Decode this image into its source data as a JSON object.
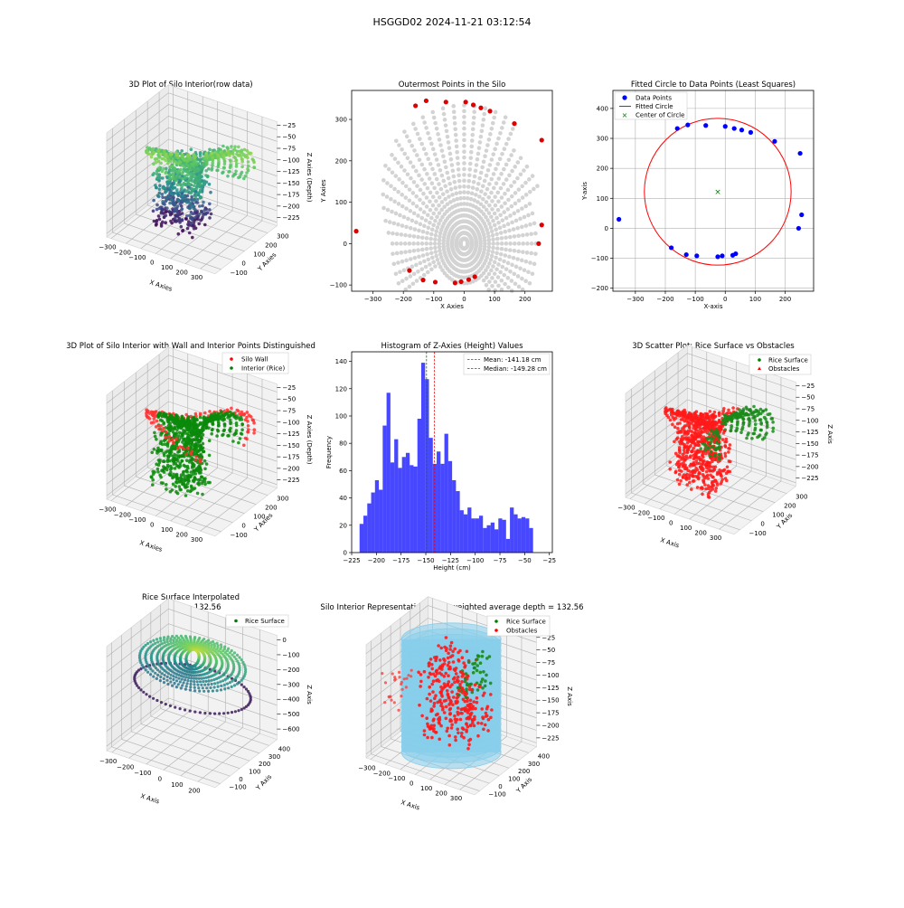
{
  "figure": {
    "suptitle": "HSGGD02 2024-11-21 03:12:54"
  },
  "colors": {
    "wall": "#ff0000",
    "rice": "#008000",
    "hist": "#0000ff",
    "cylinder": "#87ceeb",
    "gray": "#d3d3d3",
    "blue_pts": "#0000ff"
  },
  "chart_data": [
    {
      "id": "p1",
      "type": "scatter",
      "title": "3D Plot of Silo Interior(row data)",
      "xlabel": "X Axies",
      "ylabel": "Y Axies",
      "zlabel": "Z Axies (Depth)",
      "xticks": [
        "−300",
        "−200",
        "−100",
        "0",
        "100",
        "200",
        "300"
      ],
      "yticks": [
        "−100",
        "0",
        "100",
        "200",
        "300"
      ],
      "zticks": [
        "−25",
        "−50",
        "−75",
        "−100",
        "−125",
        "−150",
        "−175",
        "−200",
        "−225"
      ],
      "colormap": "viridis"
    },
    {
      "id": "p2",
      "type": "scatter",
      "title": "Outermost Points in the Silo",
      "xlabel": "X Axies",
      "ylabel": "Y Axies",
      "xlim": [
        -370,
        290
      ],
      "ylim": [
        -115,
        370
      ],
      "xticks": [
        -300,
        -200,
        -100,
        0,
        100,
        200
      ],
      "yticks": [
        -100,
        0,
        100,
        200,
        300
      ],
      "outermost_points": [
        [
          -355,
          30
        ],
        [
          -180,
          -65
        ],
        [
          -135,
          -88
        ],
        [
          -95,
          -93
        ],
        [
          -30,
          -95
        ],
        [
          -10,
          -92
        ],
        [
          15,
          -87
        ],
        [
          35,
          -80
        ],
        [
          245,
          0
        ],
        [
          255,
          45
        ],
        [
          255,
          250
        ],
        [
          165,
          290
        ],
        [
          85,
          320
        ],
        [
          55,
          328
        ],
        [
          30,
          335
        ],
        [
          5,
          342
        ],
        [
          -60,
          342
        ],
        [
          -125,
          345
        ],
        [
          -160,
          333
        ]
      ]
    },
    {
      "id": "p3",
      "type": "scatter",
      "title": "Fitted Circle to Data Points (Least Squares)",
      "xlabel": "X-axis",
      "ylabel": "Y-axis",
      "xlim": [
        -375,
        295
      ],
      "ylim": [
        -210,
        460
      ],
      "xticks": [
        -300,
        -200,
        -100,
        0,
        100,
        200
      ],
      "yticks": [
        -200,
        -100,
        0,
        100,
        200,
        300,
        400
      ],
      "legend": [
        "Data Points",
        "Fitted Circle",
        "Center of Circle"
      ],
      "data_points": [
        [
          -355,
          30
        ],
        [
          -180,
          -65
        ],
        [
          -130,
          -88
        ],
        [
          -95,
          -92
        ],
        [
          -25,
          -95
        ],
        [
          -10,
          -92
        ],
        [
          25,
          -90
        ],
        [
          35,
          -85
        ],
        [
          245,
          0
        ],
        [
          255,
          45
        ],
        [
          250,
          250
        ],
        [
          165,
          290
        ],
        [
          85,
          320
        ],
        [
          55,
          328
        ],
        [
          30,
          333
        ],
        [
          0,
          340
        ],
        [
          -65,
          343
        ],
        [
          -125,
          345
        ],
        [
          -160,
          333
        ]
      ],
      "circle_center": [
        -25,
        122
      ],
      "circle_radius": 245
    },
    {
      "id": "p4",
      "type": "scatter",
      "title": "3D Plot of Silo Interior with Wall and Interior Points Distinguished",
      "xlabel": "X Axies",
      "ylabel": "Y Axies",
      "zlabel": "Z Axies (Depth)",
      "xticks": [
        "−300",
        "−200",
        "−100",
        "0",
        "100",
        "200",
        "300"
      ],
      "yticks": [
        "−100",
        "0",
        "100",
        "200",
        "300"
      ],
      "zticks": [
        "−25",
        "−50",
        "−75",
        "−100",
        "−125",
        "−150",
        "−175",
        "−200",
        "−225"
      ],
      "legend": [
        "Silo Wall",
        "Interior (Rice)"
      ]
    },
    {
      "id": "p5",
      "type": "bar",
      "title": "Histogram of Z-Axies (Height) Values",
      "xlabel": "Height (cm)",
      "ylabel": "Frequency",
      "xlim": [
        -225,
        -22
      ],
      "ylim": [
        0,
        147
      ],
      "xticks": [
        -225,
        -200,
        -175,
        -150,
        -125,
        -100,
        -75,
        -50,
        -25
      ],
      "yticks": [
        0,
        20,
        40,
        60,
        80,
        100,
        120,
        140
      ],
      "bin_start": -217,
      "bin_width": 3.9,
      "values": [
        21,
        27,
        36,
        44,
        53,
        46,
        93,
        117,
        66,
        83,
        62,
        70,
        73,
        64,
        63,
        98,
        139,
        127,
        84,
        65,
        74,
        65,
        87,
        67,
        53,
        45,
        31,
        28,
        33,
        25,
        25,
        27,
        18,
        20,
        22,
        17,
        25,
        24,
        10,
        33,
        28,
        25,
        26,
        25,
        18
      ],
      "mean": -141.18,
      "median": -149.28,
      "legend": [
        "Mean: -141.18 cm",
        "Median: -149.28 cm"
      ]
    },
    {
      "id": "p6",
      "type": "scatter",
      "title": "3D Scatter Plot: Rice Surface vs Obstacles",
      "xlabel": "X Axis",
      "ylabel": "Y Axis",
      "zlabel": "Z Axis",
      "xticks": [
        "−300",
        "−200",
        "−100",
        "0",
        "100",
        "200",
        "300"
      ],
      "yticks": [
        "−100",
        "0",
        "100",
        "200",
        "300"
      ],
      "zticks": [
        "−25",
        "−50",
        "−75",
        "−100",
        "−125",
        "−150",
        "−175",
        "−200",
        "−225"
      ],
      "legend": [
        "Rice Surface",
        "Obstacles"
      ]
    },
    {
      "id": "p7",
      "type": "scatter",
      "title": "Rice Surface Interpolated",
      "subtitle": "depth = 132.56",
      "xlabel": "X Axis",
      "ylabel": "Y Axis",
      "zlabel": "Z Axis",
      "xticks": [
        "−300",
        "−200",
        "−100",
        "0",
        "100",
        "200"
      ],
      "yticks": [
        "−100",
        "0",
        "100",
        "200",
        "300",
        "400"
      ],
      "zticks": [
        "0",
        "−100",
        "−200",
        "−300",
        "−400",
        "−500",
        "−600"
      ],
      "legend": [
        "Rice Surface"
      ]
    },
    {
      "id": "p8",
      "type": "scatter",
      "title": "Silo Interior Representation using weighted average depth = 132.56",
      "xlabel": "X Axis",
      "ylabel": "Y Axis",
      "zlabel": "Z Axis",
      "xticks": [
        "−300",
        "−200",
        "−100",
        "0",
        "100",
        "200",
        "300"
      ],
      "yticks": [
        "−100",
        "0",
        "100",
        "200",
        "300",
        "400"
      ],
      "zticks": [
        "−25",
        "−50",
        "−75",
        "−100",
        "−125",
        "−150",
        "−175",
        "−200",
        "−225"
      ],
      "legend": [
        "Rice Surface",
        "Obstacles"
      ]
    }
  ]
}
